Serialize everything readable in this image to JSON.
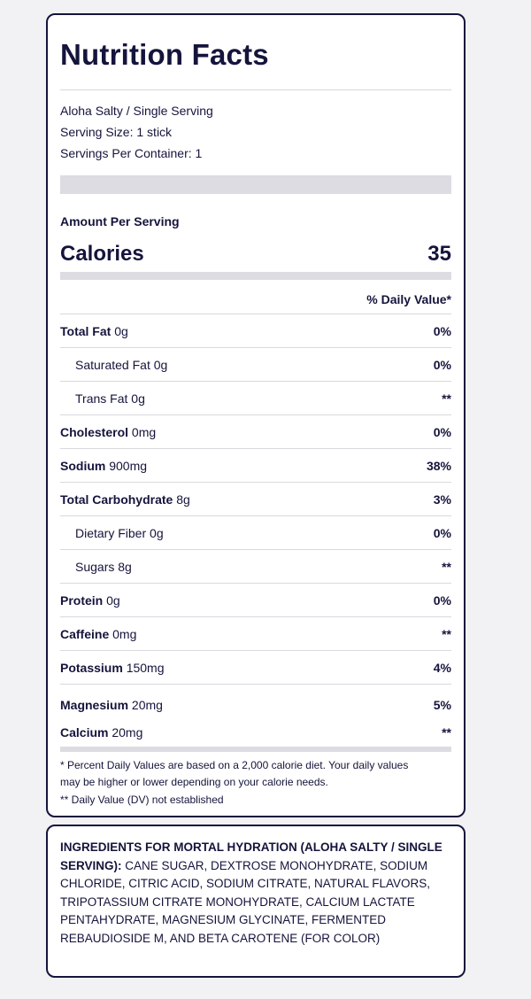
{
  "nutrition": {
    "title": "Nutrition Facts",
    "product_line": "Aloha Salty / Single Serving",
    "serving_size": "Serving Size: 1 stick",
    "servings_per_container": "Servings Per Container: 1",
    "amount_per_serving": "Amount Per Serving",
    "calories_label": "Calories",
    "calories_value": "35",
    "daily_value_header": "% Daily Value*",
    "rows": [
      {
        "name": "Total Fat",
        "amount": "0g",
        "dv": "0%"
      },
      {
        "name": "Saturated Fat",
        "amount": "0g",
        "dv": "0%"
      },
      {
        "name": "Trans Fat",
        "amount": "0g",
        "dv": "**"
      },
      {
        "name": "Cholesterol",
        "amount": "0mg",
        "dv": "0%"
      },
      {
        "name": "Sodium",
        "amount": "900mg",
        "dv": "38%"
      },
      {
        "name": "Total Carbohydrate",
        "amount": "8g",
        "dv": "3%"
      },
      {
        "name": "Dietary Fiber",
        "amount": "0g",
        "dv": "0%"
      },
      {
        "name": "Sugars",
        "amount": "8g",
        "dv": "**"
      },
      {
        "name": "Protein",
        "amount": "0g",
        "dv": "0%"
      },
      {
        "name": "Caffeine",
        "amount": "0mg",
        "dv": "**"
      },
      {
        "name": "Potassium",
        "amount": "150mg",
        "dv": "4%"
      },
      {
        "name": "Magnesium",
        "amount": "20mg",
        "dv": "5%"
      },
      {
        "name": "Calcium",
        "amount": "20mg",
        "dv": "**"
      }
    ],
    "footnote_dv_line1": "* Percent Daily Values are based on a 2,000 calorie diet. Your daily values",
    "footnote_dv_line2": "may be higher or lower depending on your calorie needs.",
    "footnote_not_established": "** Daily Value (DV) not established"
  },
  "ingredients": {
    "heading": "INGREDIENTS FOR MORTAL HYDRATION (ALOHA SALTY / SINGLE SERVING):",
    "list": "CANE SUGAR, DEXTROSE MONOHYDRATE, SODIUM CHLORIDE, CITRIC ACID, SODIUM CITRATE, NATURAL FLAVORS, TRIPOTASSIUM CITRATE MONOHYDRATE, CALCIUM LACTATE PENTAHYDRATE, MAGNESIUM GLYCINATE, FERMENTED REBAUDIOSIDE M, AND BETA CAROTENE (FOR COLOR)"
  }
}
